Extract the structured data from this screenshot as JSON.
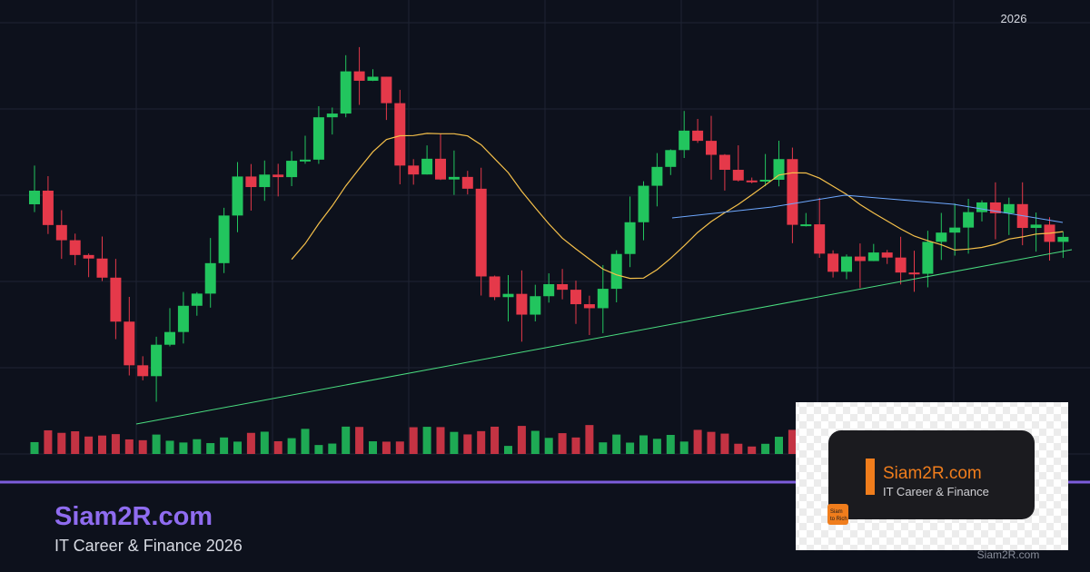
{
  "top_label": "2026",
  "brand": {
    "title": "Siam2R.com",
    "subtitle": "IT Career & Finance 2026"
  },
  "logo": {
    "title": "Siam2R.com",
    "subtitle": "IT Career & Finance",
    "badge_lines": [
      "Siam",
      "to Rich"
    ]
  },
  "watermark": "Siam2R.com"
}
